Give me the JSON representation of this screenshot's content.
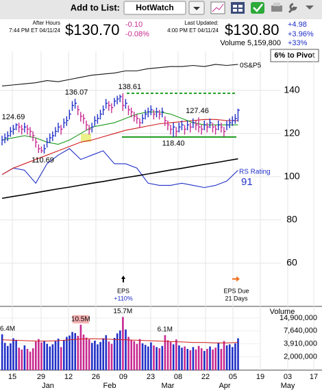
{
  "toolbar": {
    "add_label": "Add to List:",
    "list": "HotWatch"
  },
  "quote": {
    "after_hours_label": "After Hours",
    "after_hours_time": "7:44 PM ET 04/11/24",
    "after_hours_price": "$130.70",
    "after_hours_change": "-0.10",
    "after_hours_pct": "-0.08%",
    "updated_label": "Last Updated:",
    "updated_time": "4:00 PM ET 04/11/24",
    "price": "$130.80",
    "change": "+4.98",
    "pct": "+3.96%",
    "rs_change": "+33%",
    "volume": "Volume 5,159,800"
  },
  "pivot_badge": "6% to Pivot",
  "chart_data": [
    {
      "type": "ohlc",
      "up_color": "#1f2fc7",
      "down_color": "#c8288f",
      "ylim": [
        40,
        158
      ],
      "yticks": [
        60,
        80,
        100,
        120,
        140
      ],
      "grid": true,
      "x_labels": [
        "15",
        "29",
        "12",
        "26",
        "09",
        "23",
        "08",
        "22",
        "05",
        "19",
        "03",
        "17"
      ],
      "months": [
        "Jan",
        "Feb",
        "Mar",
        "Apr",
        "May"
      ],
      "close": [
        117,
        118,
        119,
        121,
        122,
        124,
        123,
        122,
        123,
        122,
        121,
        119,
        116,
        113,
        112,
        113,
        116,
        118,
        119,
        121,
        123,
        122,
        125,
        126,
        129,
        133,
        134,
        131,
        128,
        127,
        124,
        122,
        123,
        126,
        127,
        129,
        131,
        134,
        133,
        132,
        135,
        136,
        137,
        133,
        134,
        131,
        130,
        128,
        127,
        125,
        127,
        129,
        130,
        131,
        129,
        130,
        129,
        130,
        126,
        124,
        122,
        123,
        121,
        123,
        124,
        122,
        124,
        123,
        125,
        124,
        123,
        122,
        124,
        123,
        125,
        123,
        122,
        124,
        123,
        121,
        124,
        125,
        126,
        127,
        130.8
      ],
      "high": [
        119,
        120,
        121,
        123,
        124,
        124.69,
        125,
        124,
        125,
        124,
        123,
        121,
        118,
        115,
        114,
        115,
        118,
        120,
        121,
        123,
        125,
        124,
        127,
        128,
        131,
        135,
        136.07,
        133,
        130,
        129,
        126,
        124,
        125,
        128,
        129,
        131,
        133,
        136,
        135,
        134,
        136.5,
        137.5,
        138,
        138.61,
        136,
        133,
        132,
        130,
        129,
        127,
        129,
        131,
        132,
        133,
        131,
        132,
        131,
        132,
        128,
        126,
        124,
        125,
        123,
        125,
        126,
        124,
        126,
        125,
        127,
        126,
        127.46,
        124,
        126,
        125,
        127,
        125,
        124,
        126,
        125,
        123,
        126,
        127,
        128,
        129,
        131.5
      ],
      "low": [
        114.5,
        115.5,
        116.5,
        118.5,
        119.5,
        121.5,
        120.5,
        119.5,
        120.5,
        119.5,
        118.5,
        116.5,
        113.5,
        111,
        111,
        110.69,
        113.5,
        115.5,
        116.5,
        118.5,
        120.5,
        119.5,
        122.5,
        123.5,
        126.5,
        130.5,
        131.5,
        128.5,
        125.5,
        124.5,
        121.5,
        119.5,
        120.5,
        123.5,
        124.5,
        126.5,
        128.5,
        131.5,
        130.5,
        129.5,
        132.5,
        133.5,
        134.5,
        130.5,
        131.5,
        128.5,
        127.5,
        125.5,
        124.5,
        122.5,
        124.5,
        126.5,
        127.5,
        128.5,
        126.5,
        127.5,
        126.5,
        127.5,
        123.5,
        121.5,
        119.5,
        118.4,
        118.5,
        120.5,
        121.5,
        119.5,
        121.5,
        120.5,
        122.5,
        121.5,
        120.5,
        119.5,
        121.5,
        120.5,
        122.5,
        120.5,
        119.5,
        121.5,
        120.5,
        118.5,
        121.5,
        122.5,
        123.5,
        124.5,
        125.5
      ],
      "annotations": [
        "124.69",
        "136.07",
        "138.61",
        "127.46",
        "110.69",
        "118.40"
      ],
      "lines": [
        {
          "name": "0S&P5",
          "color": "#111111",
          "values": [
            142,
            142.5,
            143,
            143.5,
            144.5,
            144,
            145,
            146,
            147,
            147.5,
            148,
            149,
            149,
            150,
            150.5,
            151,
            151,
            151.5,
            151,
            152,
            151.5,
            152
          ]
        },
        {
          "name": "RS Rating",
          "color": "#1f2fc7",
          "values": [
            101,
            104,
            103,
            97,
            106,
            110,
            113,
            108,
            110,
            112,
            106,
            106,
            104,
            97,
            96,
            96,
            97,
            96,
            95,
            96,
            98,
            103
          ]
        },
        {
          "color": "#d11919",
          "values": [
            101,
            104,
            106,
            108,
            110,
            112,
            114,
            116,
            117,
            118.5,
            120,
            121.5,
            122.5,
            123.5,
            124.5,
            125,
            125.5,
            126,
            126.5,
            126.5,
            126,
            126
          ]
        },
        {
          "color": "#1a9a1a",
          "values": [
            117,
            118,
            119,
            118,
            116,
            115,
            117,
            120,
            123,
            124,
            125,
            127,
            129,
            130,
            130,
            129,
            127,
            125,
            124,
            124,
            124,
            124
          ]
        },
        {
          "color": "#000000",
          "values": [
            90,
            90.9,
            91.7,
            92.6,
            93.5,
            94.4,
            95.2,
            96.1,
            97,
            97.8,
            98.7,
            99.6,
            100.4,
            101.3,
            102.2,
            103.1,
            103.9,
            104.8,
            105.7,
            106.5,
            107.4,
            108.3
          ]
        }
      ],
      "rs_rating": 91,
      "events": [
        {
          "label": "EPS",
          "detail": "+110%"
        },
        {
          "label": "EPS Due",
          "detail": "21 Days"
        }
      ]
    },
    {
      "type": "volume",
      "title": "Volume",
      "log": true,
      "ylim": [
        1000000,
        24400000
      ],
      "yticks": [
        {
          "value": 14900000,
          "label": "14,900,000"
        },
        {
          "value": 7640000,
          "label": "7,640,000"
        },
        {
          "value": 3910000,
          "label": "3,910,000"
        },
        {
          "value": 2000000,
          "label": "2,000,000"
        }
      ],
      "values": [
        6400000,
        4100000,
        3500000,
        4000000,
        5200000,
        4800000,
        3200000,
        2900000,
        3600000,
        3000000,
        2600000,
        3100000,
        4400000,
        5000000,
        4200000,
        4600000,
        3900000,
        3400000,
        3800000,
        4500000,
        5100000,
        3300000,
        4700000,
        5600000,
        6000000,
        7200000,
        6800000,
        5900000,
        10500000,
        6300000,
        5400000,
        4900000,
        4100000,
        4600000,
        3800000,
        4300000,
        5200000,
        6100000,
        4400000,
        3900000,
        5300000,
        6700000,
        7800000,
        15700000,
        8200000,
        5600000,
        4800000,
        4500000,
        3900000,
        5000000,
        4000000,
        3700000,
        3400000,
        4200000,
        3600000,
        3300000,
        3100000,
        3500000,
        6100000,
        4700000,
        4300000,
        3800000,
        4900000,
        3600000,
        3200000,
        3400000,
        3000000,
        2800000,
        3300000,
        2900000,
        3500000,
        3100000,
        2700000,
        3000000,
        3400000,
        2900000,
        3200000,
        4100000,
        3000000,
        4500000,
        3600000,
        3800000,
        3300000,
        4000000,
        5200000
      ],
      "average_color": "#d11919",
      "average": [
        4800000,
        4700000,
        4600000,
        4500000,
        4500000,
        4600000,
        4800000,
        5000000,
        5100000,
        5000000,
        4900000,
        4800000,
        4700000,
        4600000,
        4500000,
        4400000,
        4300000,
        4200000,
        4200000,
        4100000,
        4100000,
        4200000
      ],
      "annotations": [
        "6.4M",
        "10.5M",
        "15.7M",
        "6.1M"
      ]
    }
  ]
}
